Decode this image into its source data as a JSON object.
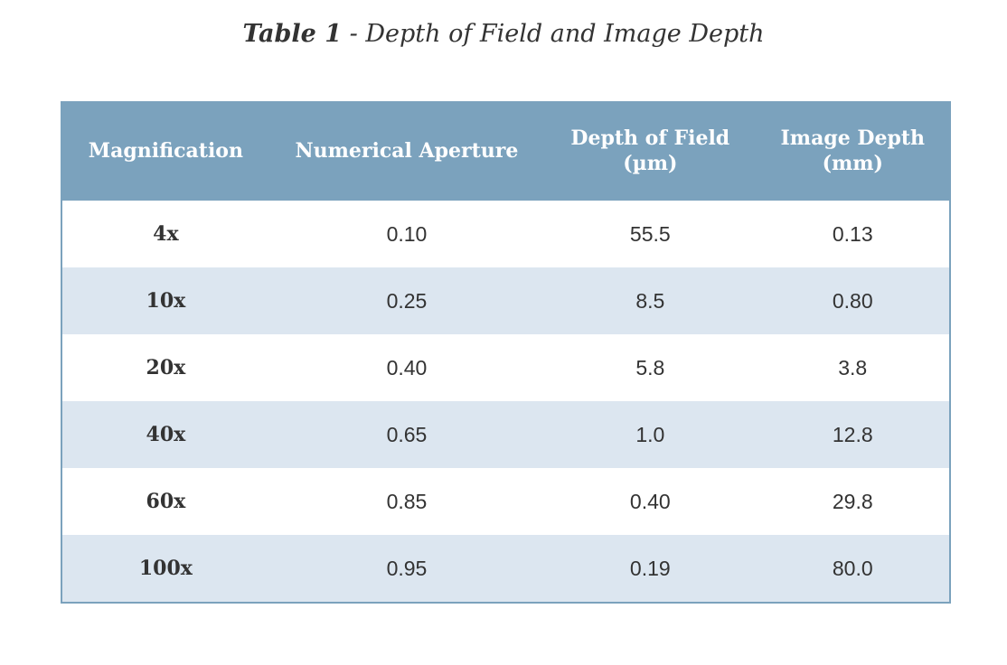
{
  "title": {
    "label": "Table 1",
    "separator": " - ",
    "text": "Depth of Field and Image Depth"
  },
  "colors": {
    "header_bg": "#7ba2bd",
    "stripe_bg": "#dce6f0",
    "text": "#333333"
  },
  "table": {
    "headers": [
      [
        "Magnification"
      ],
      [
        "Numerical Aperture"
      ],
      [
        "Depth of Field",
        "(µm)"
      ],
      [
        "Image Depth",
        "(mm)"
      ]
    ],
    "rows": [
      [
        "4x",
        "0.10",
        "55.5",
        "0.13"
      ],
      [
        "10x",
        "0.25",
        "8.5",
        "0.80"
      ],
      [
        "20x",
        "0.40",
        "5.8",
        "3.8"
      ],
      [
        "40x",
        "0.65",
        "1.0",
        "12.8"
      ],
      [
        "60x",
        "0.85",
        "0.40",
        "29.8"
      ],
      [
        "100x",
        "0.95",
        "0.19",
        "80.0"
      ]
    ]
  }
}
